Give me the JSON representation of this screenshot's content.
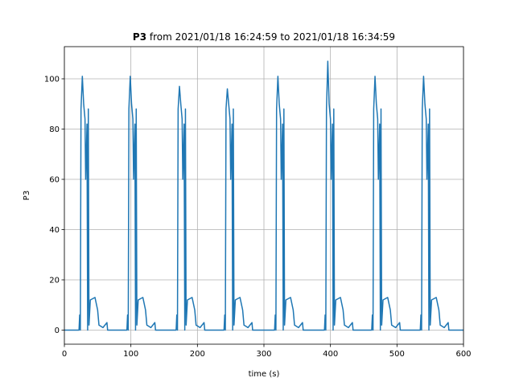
{
  "chart_data": {
    "type": "line",
    "title_bold": "P3",
    "title": "from 2021/01/18 16:24:59 to 2021/01/18 16:34:59",
    "xlabel": "time (s)",
    "ylabel": "P3",
    "color": "#1f77b4",
    "grid": true,
    "xlim": [
      0,
      600
    ],
    "ylim": [
      -5.6,
      112.8
    ],
    "xticks": [
      0,
      100,
      200,
      300,
      400,
      500,
      600
    ],
    "yticks": [
      0,
      20,
      40,
      60,
      80,
      100
    ],
    "x": [
      0,
      22,
      23,
      24,
      25,
      27,
      29,
      31,
      32,
      34,
      35,
      36,
      37,
      39,
      46,
      50,
      52,
      58,
      64,
      65,
      94,
      95,
      96,
      97,
      99,
      101,
      103,
      104,
      106,
      107,
      108,
      109,
      111,
      118,
      122,
      124,
      130,
      136,
      137,
      168,
      169,
      170,
      171,
      173,
      175,
      177,
      178,
      180,
      181,
      182,
      183,
      185,
      192,
      196,
      198,
      204,
      210,
      211,
      240,
      241,
      242,
      243,
      245,
      247,
      249,
      250,
      252,
      253,
      254,
      255,
      257,
      264,
      268,
      270,
      276,
      282,
      283,
      316,
      317,
      318,
      319,
      321,
      323,
      325,
      326,
      328,
      329,
      330,
      331,
      333,
      340,
      344,
      346,
      352,
      358,
      359,
      391,
      392,
      393,
      394,
      396,
      398,
      400,
      401,
      403,
      404,
      405,
      406,
      408,
      415,
      419,
      421,
      427,
      433,
      434,
      462,
      463,
      464,
      465,
      467,
      469,
      471,
      472,
      474,
      475,
      476,
      477,
      479,
      486,
      490,
      492,
      498,
      504,
      505,
      535,
      536,
      537,
      538,
      540,
      542,
      544,
      545,
      547,
      548,
      549,
      550,
      552,
      559,
      563,
      565,
      571,
      577,
      578,
      600
    ],
    "values": [
      0,
      0,
      6,
      0,
      88,
      101,
      90,
      84,
      60,
      82,
      0,
      88,
      2,
      12,
      13,
      8,
      2,
      1,
      3,
      0,
      0,
      6,
      0,
      88,
      101,
      90,
      84,
      60,
      82,
      0,
      88,
      2,
      12,
      13,
      8,
      2,
      1,
      3,
      0,
      0,
      6,
      0,
      88,
      97,
      90,
      84,
      60,
      82,
      0,
      88,
      2,
      12,
      13,
      8,
      2,
      1,
      3,
      0,
      0,
      6,
      0,
      88,
      96,
      90,
      84,
      60,
      82,
      0,
      88,
      2,
      12,
      13,
      8,
      2,
      1,
      3,
      0,
      0,
      6,
      0,
      88,
      101,
      90,
      84,
      60,
      82,
      0,
      88,
      2,
      12,
      13,
      8,
      2,
      1,
      3,
      0,
      0,
      6,
      0,
      88,
      107,
      90,
      84,
      60,
      82,
      0,
      88,
      2,
      12,
      13,
      8,
      2,
      1,
      3,
      0,
      0,
      6,
      0,
      88,
      101,
      90,
      84,
      60,
      82,
      0,
      88,
      2,
      12,
      13,
      8,
      2,
      1,
      3,
      0,
      0,
      6,
      0,
      88,
      101,
      90,
      84,
      60,
      82,
      0,
      88,
      2,
      12,
      13,
      8,
      2,
      1,
      3,
      0,
      0
    ]
  }
}
